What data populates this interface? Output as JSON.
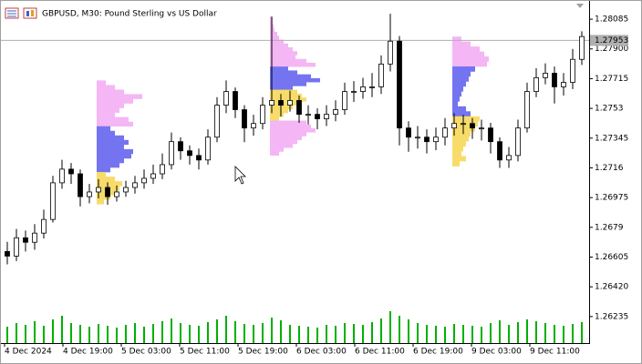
{
  "chart_data": {
    "type": "candlestick",
    "title": "GBPUSD, M30:  Pound Sterling vs US Dollar",
    "time_labels": [
      "4 Dec 2024",
      "4 Dec 19:00",
      "5 Dec 03:00",
      "5 Dec 11:00",
      "5 Dec 19:00",
      "6 Dec 03:00",
      "6 Dec 11:00",
      "6 Dec 19:00",
      "9 Dec 03:00",
      "9 Dec 11:00"
    ],
    "ylim": [
      1.2607,
      1.28159
    ],
    "yticks": [
      1.28085,
      {
        "value": 1.279,
        "label": "1.27900"
      },
      1.27715,
      1.2753,
      1.27345,
      1.2716,
      1.26975,
      1.2679,
      1.26605,
      {
        "value": 1.2642,
        "label": "1.26420"
      },
      1.26235
    ],
    "current_price": 1.27953,
    "open": [
      1.2664,
      1.26611,
      1.26725,
      1.26697,
      1.26754,
      1.26839,
      1.27067,
      1.27152,
      1.27123,
      1.26981,
      1.2701,
      1.27038,
      1.26981,
      1.2701,
      1.27038,
      1.27067,
      1.27095,
      1.27123,
      1.2718,
      1.27323,
      1.27266,
      1.27237,
      1.27209,
      1.27351,
      1.2755,
      1.27635,
      1.27522,
      1.27408,
      1.27436,
      1.2755,
      1.27579,
      1.2755,
      1.27579,
      1.27493,
      1.27493,
      1.27465,
      1.27493,
      1.27522,
      1.27635,
      1.27635,
      1.27664,
      1.27664,
      1.27806,
      1.27948,
      1.27408,
      1.27351,
      1.27351,
      1.27323,
      1.27351,
      1.27408,
      1.27436,
      1.27436,
      1.27408,
      1.27408,
      1.27323,
      1.27209,
      1.27237,
      1.27408,
      1.27635,
      1.27721,
      1.27749,
      1.27664,
      1.27692,
      1.27835
    ],
    "high": [
      1.267,
      1.2678,
      1.2677,
      1.2681,
      1.269,
      1.2711,
      1.2721,
      1.2719,
      1.2715,
      1.2706,
      1.2709,
      1.2707,
      1.2705,
      1.2708,
      1.2711,
      1.2715,
      1.2718,
      1.2725,
      1.2738,
      1.2735,
      1.273,
      1.2728,
      1.274,
      1.276,
      1.27704,
      1.2766,
      1.2755,
      1.2749,
      1.276,
      1.281,
      1.2762,
      1.2764,
      1.2761,
      1.2755,
      1.2753,
      1.2755,
      1.2758,
      1.2769,
      1.277,
      1.2772,
      1.2775,
      1.2786,
      1.28119,
      1.2798,
      1.2745,
      1.2742,
      1.274,
      1.2741,
      1.2747,
      1.275,
      1.2749,
      1.2747,
      1.2746,
      1.2744,
      1.2735,
      1.2729,
      1.2746,
      1.2769,
      1.2778,
      1.2781,
      1.2779,
      1.2775,
      1.279,
      1.2801
    ],
    "low": [
      1.2656,
      1.2658,
      1.2664,
      1.2665,
      1.2672,
      1.2682,
      1.2703,
      1.2706,
      1.2692,
      1.2694,
      1.2697,
      1.2693,
      1.2695,
      1.2698,
      1.27,
      1.2703,
      1.2706,
      1.2709,
      1.2715,
      1.2721,
      1.2718,
      1.2715,
      1.2718,
      1.2732,
      1.275,
      1.2747,
      1.2732,
      1.2736,
      1.274,
      1.275,
      1.2748,
      1.2751,
      1.2744,
      1.2743,
      1.274,
      1.2742,
      1.2745,
      1.2749,
      1.2757,
      1.2759,
      1.276,
      1.2762,
      1.2776,
      1.273,
      1.2726,
      1.2728,
      1.2725,
      1.2727,
      1.273,
      1.2736,
      1.2737,
      1.2734,
      1.2733,
      1.2725,
      1.2716,
      1.2716,
      1.272,
      1.2738,
      1.276,
      1.2768,
      1.2756,
      1.2761,
      1.2765,
      1.278
    ],
    "close": [
      1.26611,
      1.26725,
      1.26697,
      1.26754,
      1.26839,
      1.27067,
      1.27152,
      1.27123,
      1.26981,
      1.2701,
      1.27038,
      1.26981,
      1.2701,
      1.27038,
      1.27067,
      1.27095,
      1.27123,
      1.2718,
      1.27323,
      1.27266,
      1.27237,
      1.27209,
      1.27351,
      1.2755,
      1.27635,
      1.27522,
      1.27408,
      1.27436,
      1.2755,
      1.27579,
      1.2755,
      1.27579,
      1.27493,
      1.27493,
      1.27465,
      1.27493,
      1.27522,
      1.27635,
      1.27635,
      1.27664,
      1.27664,
      1.27806,
      1.27948,
      1.27408,
      1.27351,
      1.27351,
      1.27323,
      1.27351,
      1.27408,
      1.27436,
      1.27436,
      1.27408,
      1.27408,
      1.27323,
      1.27209,
      1.27237,
      1.27408,
      1.27635,
      1.27721,
      1.27749,
      1.27664,
      1.27692,
      1.27835,
      1.27977
    ],
    "volume": [
      18,
      22,
      20,
      24,
      19,
      26,
      30,
      22,
      20,
      18,
      21,
      19,
      17,
      20,
      22,
      18,
      21,
      24,
      27,
      22,
      20,
      19,
      23,
      26,
      30,
      24,
      21,
      20,
      22,
      28,
      25,
      20,
      19,
      18,
      17,
      20,
      19,
      22,
      21,
      20,
      23,
      27,
      35,
      30,
      26,
      22,
      20,
      19,
      18,
      21,
      20,
      19,
      18,
      22,
      25,
      20,
      23,
      26,
      24,
      22,
      20,
      19,
      21,
      23
    ],
    "volume_color": "#00b000",
    "candle_color": "#000000",
    "profiles": [
      {
        "anchor": 10,
        "top": 1.27704,
        "step": 0.000285,
        "segments": [
          {
            "color": "#f4b6f4",
            "volumes": [
              10,
              20,
              30,
              50,
              40,
              30,
              25,
              20,
              35,
              40
            ]
          },
          {
            "color": "#7474f0",
            "volumes": [
              15,
              20,
              30,
              35,
              30,
              40,
              38,
              30,
              25,
              15
            ]
          },
          {
            "color": "#f7dc6a",
            "volumes": [
              10,
              20,
              28,
              25,
              22,
              15,
              8
            ]
          }
        ]
      },
      {
        "anchor": 29,
        "top": 1.28102,
        "step": 0.00024,
        "segments": [
          {
            "color": "#f4b6f4",
            "volumes": [
              3,
              3,
              4,
              5,
              8,
              10,
              15,
              20,
              25,
              30,
              28,
              40,
              50
            ]
          },
          {
            "color": "#7474f0",
            "volumes": [
              20,
              30,
              45,
              55,
              40,
              25
            ]
          },
          {
            "color": "#f7dc6a",
            "volumes": [
              30,
              35,
              40,
              30,
              25,
              20,
              15,
              10
            ]
          },
          {
            "color": "#f4b6f4",
            "volumes": [
              40,
              45,
              50,
              40,
              35,
              30,
              25,
              15,
              10
            ]
          }
        ]
      },
      {
        "anchor": 49,
        "top": 1.27977,
        "step": 0.00031,
        "segments": [
          {
            "color": "#f4b6f4",
            "volumes": [
              10,
              20,
              30,
              35,
              40,
              38
            ]
          },
          {
            "color": "#7474f0",
            "volumes": [
              25,
              20,
              18,
              15,
              12,
              10,
              8,
              6,
              15,
              20
            ]
          },
          {
            "color": "#f7dc6a",
            "volumes": [
              30,
              28,
              25,
              20,
              18,
              15,
              12,
              10,
              15,
              8
            ]
          }
        ]
      }
    ]
  }
}
